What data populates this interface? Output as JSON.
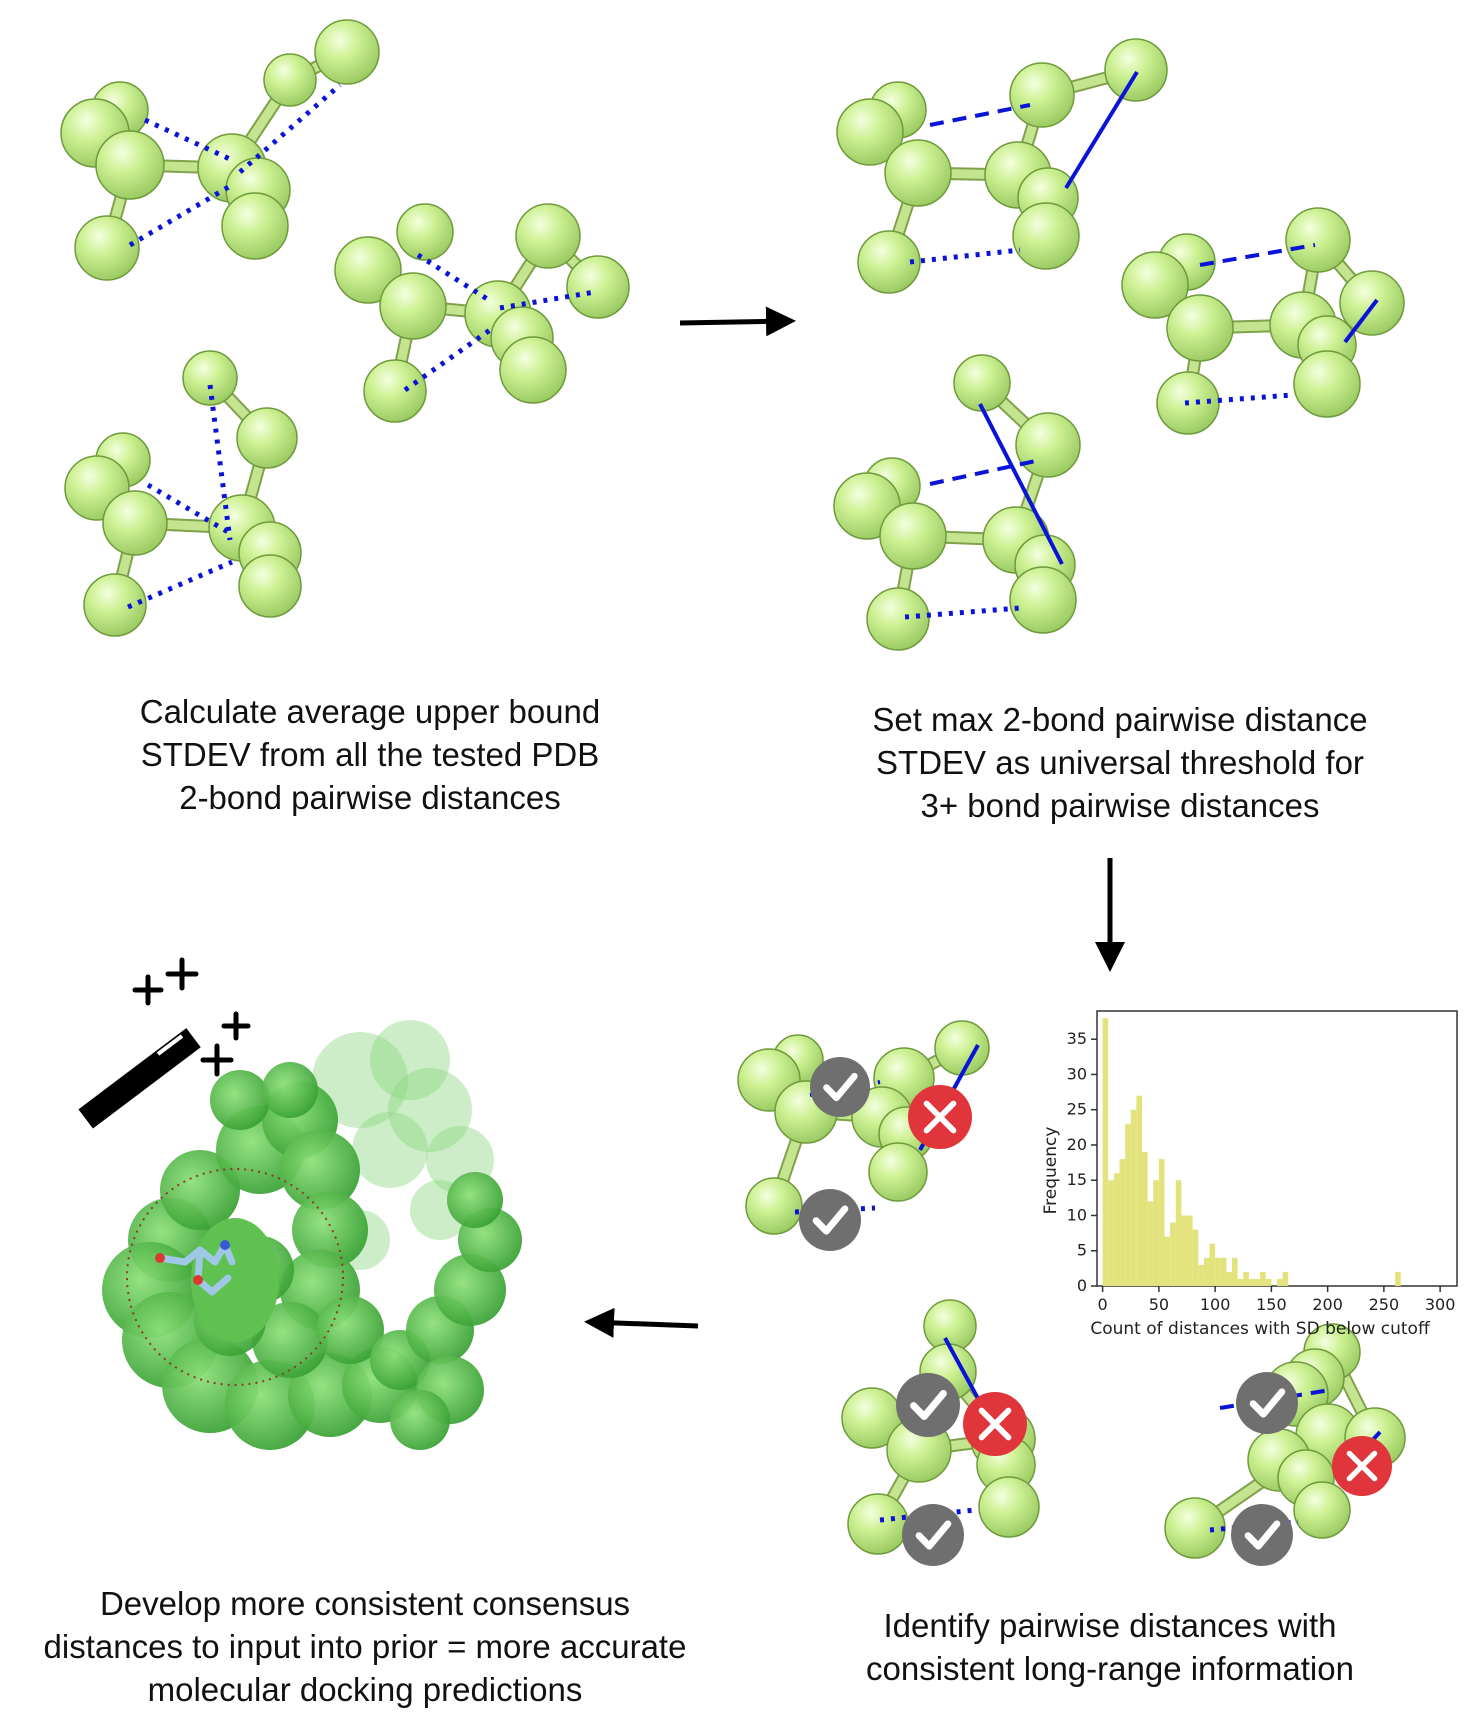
{
  "steps": {
    "step1": {
      "lines": [
        "Calculate average upper bound",
        "STDEV from all the tested PDB",
        "2-bond pairwise distances"
      ]
    },
    "step2": {
      "lines": [
        "Set max 2-bond pairwise distance",
        "STDEV as universal threshold for",
        "3+ bond pairwise distances"
      ]
    },
    "step3": {
      "lines": [
        "Identify pairwise distances with",
        "consistent long-range information"
      ]
    },
    "step4": {
      "lines": [
        "Develop more consistent consensus",
        "distances to input into prior = more accurate",
        "molecular docking predictions"
      ]
    }
  },
  "icons": {
    "check": "check-icon",
    "cross": "cross-icon",
    "wand": "magic-wand-icon",
    "arrow": "arrow-icon"
  },
  "colors": {
    "atom": "#c9f08f",
    "atom_edge": "#6f9a3c",
    "bond": "#c4e490",
    "distance_line": "#0a14d8",
    "check_badge": "#6f6f6f",
    "cross_badge": "#e0353a",
    "histogram_bar": "#e3e37e",
    "protein_surface": "#4fbf43"
  },
  "chart_data": {
    "type": "bar",
    "xlabel": "Count of distances with SD below cutoff",
    "ylabel": "Frequency",
    "xlim": [
      -5,
      315
    ],
    "ylim": [
      0,
      39
    ],
    "xticks": [
      0,
      50,
      100,
      150,
      200,
      250,
      300
    ],
    "yticks": [
      0,
      5,
      10,
      15,
      20,
      25,
      30,
      35
    ],
    "bin_width": 5,
    "bins": [
      0,
      5,
      10,
      15,
      20,
      25,
      30,
      35,
      40,
      45,
      50,
      55,
      60,
      65,
      70,
      75,
      80,
      85,
      90,
      95,
      100,
      105,
      110,
      115,
      120,
      125,
      130,
      135,
      140,
      145,
      150,
      155,
      160,
      165,
      170,
      175,
      180,
      185,
      190,
      195,
      200,
      205,
      210,
      215,
      220,
      225,
      230,
      235,
      240,
      245,
      250,
      255,
      260
    ],
    "values": [
      38,
      15,
      16,
      18,
      23,
      25,
      27,
      19,
      12,
      15,
      18,
      7,
      9,
      15,
      10,
      10,
      8,
      3,
      4,
      6,
      4,
      4,
      2,
      4,
      1,
      2,
      1,
      1,
      2,
      1,
      0,
      1,
      2,
      0,
      0,
      0,
      0,
      0,
      0,
      0,
      0,
      0,
      0,
      0,
      0,
      0,
      0,
      0,
      0,
      0,
      0,
      0,
      2
    ]
  }
}
